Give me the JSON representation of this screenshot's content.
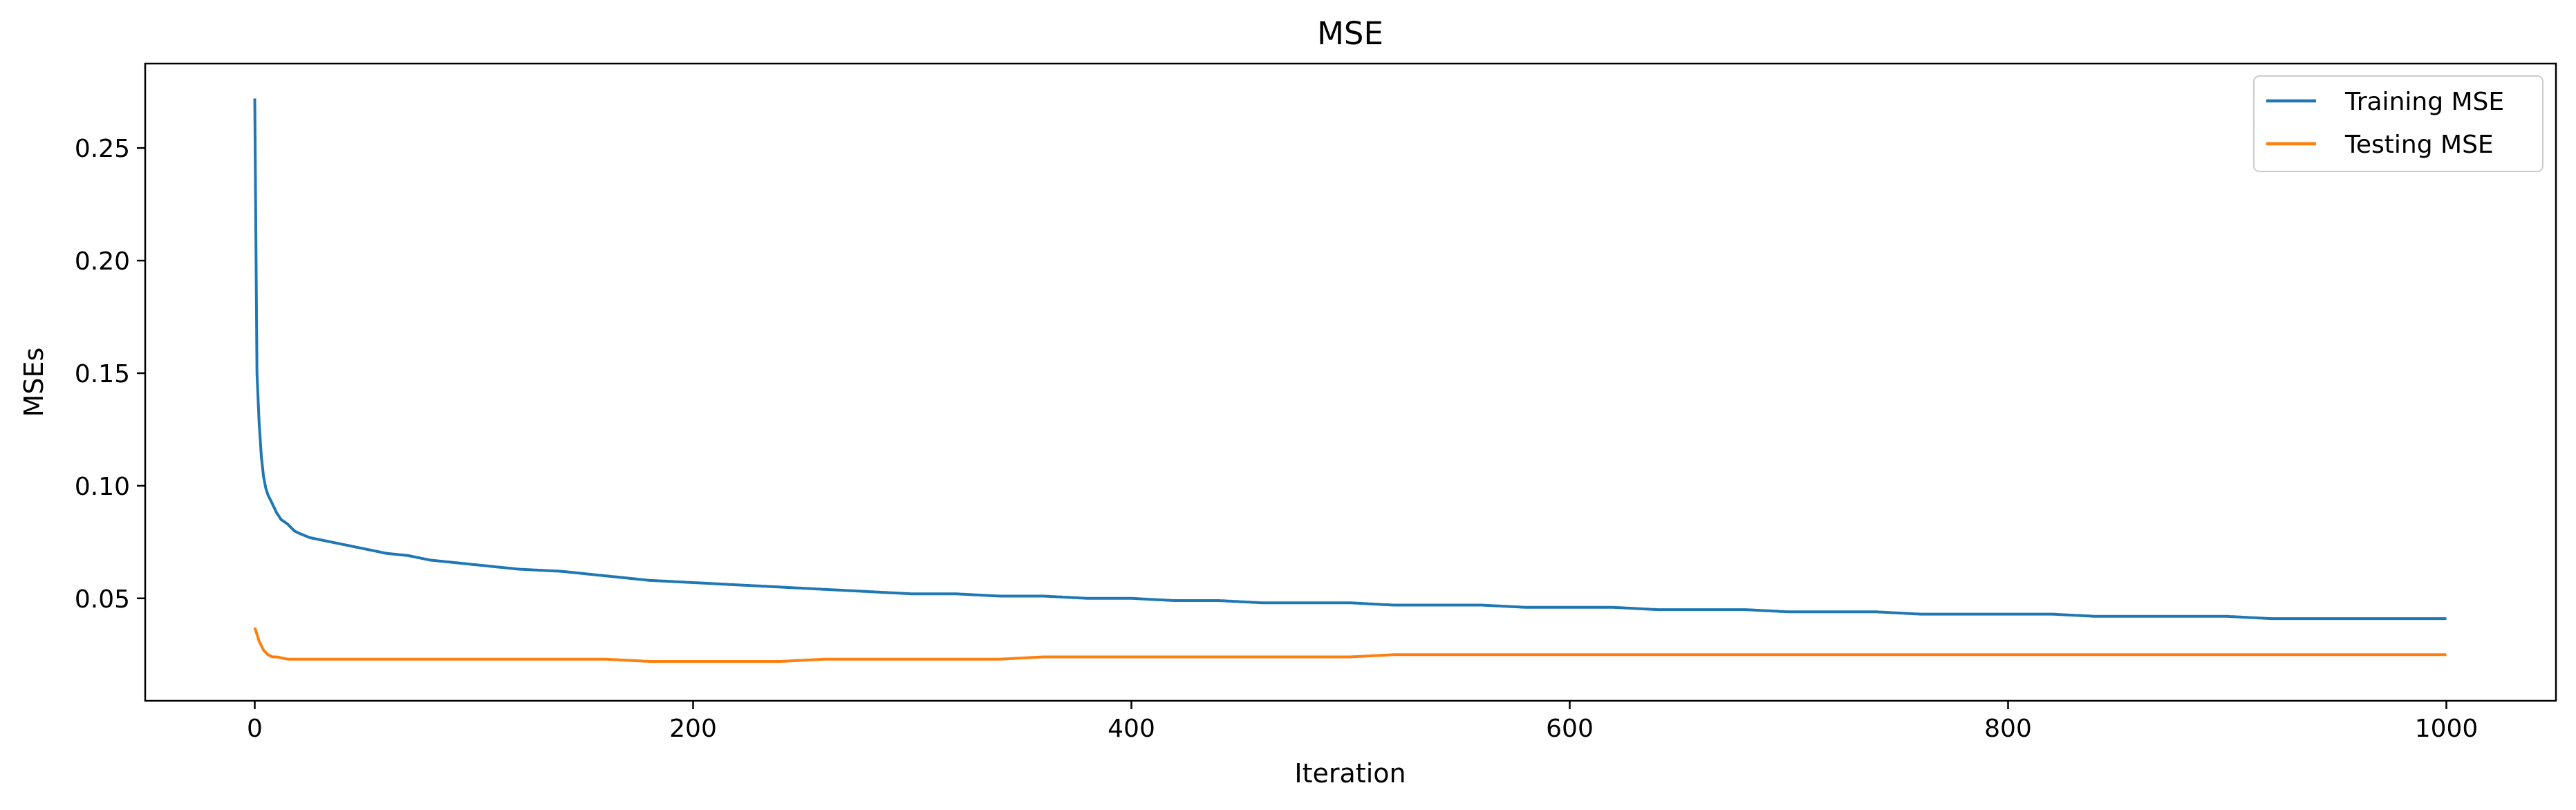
{
  "chart_data": {
    "type": "line",
    "title": "MSE",
    "xlabel": "Iteration",
    "ylabel": "MSEs",
    "xlim": [
      -50,
      1050
    ],
    "ylim": [
      0.0045,
      0.2875
    ],
    "xticks": [
      0,
      200,
      400,
      600,
      800,
      1000
    ],
    "yticks": [
      0.05,
      0.1,
      0.15,
      0.2,
      0.25
    ],
    "ytick_labels": [
      "0.05",
      "0.10",
      "0.15",
      "0.20",
      "0.25"
    ],
    "grid": false,
    "legend_position": "top-right",
    "series": [
      {
        "name": "Training MSE",
        "color": "#1f77b4",
        "x": [
          0,
          1,
          2,
          3,
          4,
          5,
          6,
          8,
          10,
          12,
          15,
          18,
          20,
          25,
          30,
          35,
          40,
          50,
          60,
          70,
          80,
          90,
          100,
          120,
          140,
          160,
          180,
          200,
          220,
          240,
          260,
          280,
          300,
          320,
          340,
          360,
          380,
          400,
          420,
          440,
          460,
          480,
          500,
          520,
          540,
          560,
          580,
          600,
          620,
          640,
          660,
          680,
          700,
          720,
          740,
          760,
          780,
          800,
          820,
          840,
          860,
          880,
          900,
          920,
          940,
          960,
          980,
          1000
        ],
        "values": [
          0.272,
          0.15,
          0.128,
          0.113,
          0.104,
          0.099,
          0.096,
          0.092,
          0.088,
          0.085,
          0.083,
          0.08,
          0.079,
          0.077,
          0.076,
          0.075,
          0.074,
          0.072,
          0.07,
          0.069,
          0.067,
          0.066,
          0.065,
          0.063,
          0.062,
          0.06,
          0.058,
          0.057,
          0.056,
          0.055,
          0.054,
          0.053,
          0.052,
          0.052,
          0.051,
          0.051,
          0.05,
          0.05,
          0.049,
          0.049,
          0.048,
          0.048,
          0.048,
          0.047,
          0.047,
          0.047,
          0.046,
          0.046,
          0.046,
          0.045,
          0.045,
          0.045,
          0.044,
          0.044,
          0.044,
          0.043,
          0.043,
          0.043,
          0.043,
          0.042,
          0.042,
          0.042,
          0.042,
          0.041,
          0.041,
          0.041,
          0.041,
          0.041
        ]
      },
      {
        "name": "Testing MSE",
        "color": "#ff7f0e",
        "x": [
          0,
          1,
          2,
          3,
          4,
          5,
          6,
          8,
          10,
          15,
          20,
          30,
          40,
          60,
          80,
          100,
          120,
          140,
          160,
          180,
          200,
          220,
          240,
          260,
          280,
          300,
          320,
          340,
          360,
          380,
          400,
          420,
          440,
          460,
          480,
          500,
          520,
          540,
          560,
          580,
          600,
          620,
          640,
          660,
          680,
          700,
          720,
          740,
          760,
          780,
          800,
          820,
          840,
          860,
          880,
          900,
          920,
          940,
          960,
          980,
          1000
        ],
        "values": [
          0.037,
          0.034,
          0.031,
          0.029,
          0.027,
          0.026,
          0.025,
          0.024,
          0.024,
          0.023,
          0.023,
          0.023,
          0.023,
          0.023,
          0.023,
          0.023,
          0.023,
          0.023,
          0.023,
          0.022,
          0.022,
          0.022,
          0.022,
          0.023,
          0.023,
          0.023,
          0.023,
          0.023,
          0.024,
          0.024,
          0.024,
          0.024,
          0.024,
          0.024,
          0.024,
          0.024,
          0.025,
          0.025,
          0.025,
          0.025,
          0.025,
          0.025,
          0.025,
          0.025,
          0.025,
          0.025,
          0.025,
          0.025,
          0.025,
          0.025,
          0.025,
          0.025,
          0.025,
          0.025,
          0.025,
          0.025,
          0.025,
          0.025,
          0.025,
          0.025,
          0.025
        ]
      }
    ]
  }
}
